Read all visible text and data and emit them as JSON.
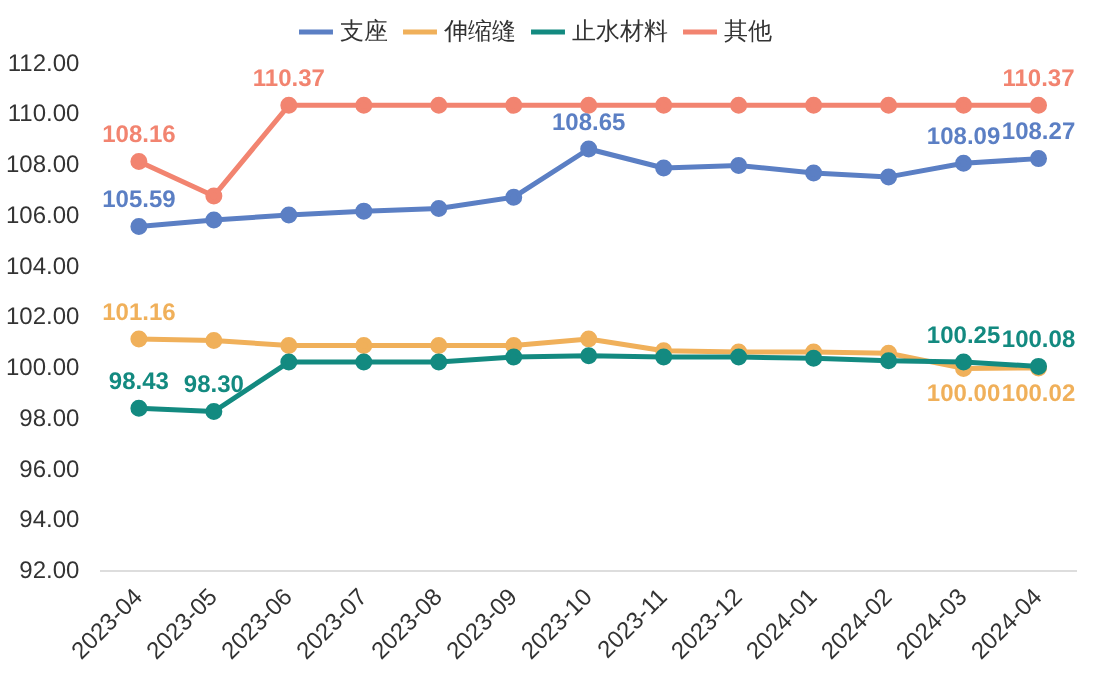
{
  "chart_data": {
    "type": "line",
    "categories": [
      "2023-04",
      "2023-05",
      "2023-06",
      "2023-07",
      "2023-08",
      "2023-09",
      "2023-10",
      "2023-11",
      "2023-12",
      "2024-01",
      "2024-02",
      "2024-03",
      "2024-04"
    ],
    "series": [
      {
        "name": "支座",
        "color": "#5b7fc4",
        "values": [
          105.59,
          105.85,
          106.05,
          106.2,
          106.3,
          106.75,
          108.65,
          107.9,
          108.0,
          107.7,
          107.55,
          108.09,
          108.27
        ],
        "value_labels": [
          "105.59",
          null,
          null,
          null,
          null,
          null,
          "108.65",
          null,
          null,
          null,
          null,
          "108.09",
          "108.27"
        ]
      },
      {
        "name": "伸缩缝",
        "color": "#f0b05a",
        "values": [
          101.16,
          101.1,
          100.9,
          100.9,
          100.9,
          100.9,
          101.16,
          100.7,
          100.65,
          100.65,
          100.6,
          100.0,
          100.02
        ],
        "value_labels": [
          "101.16",
          null,
          null,
          null,
          null,
          null,
          null,
          null,
          null,
          null,
          null,
          "100.00",
          "100.02"
        ]
      },
      {
        "name": "止水材料",
        "color": "#138a80",
        "values": [
          98.43,
          98.3,
          100.25,
          100.25,
          100.25,
          100.45,
          100.5,
          100.45,
          100.45,
          100.4,
          100.3,
          100.25,
          100.08
        ],
        "value_labels": [
          "98.43",
          "98.30",
          null,
          null,
          null,
          null,
          null,
          null,
          null,
          null,
          null,
          "100.25",
          "100.08"
        ]
      },
      {
        "name": "其他",
        "color": "#f28470",
        "values": [
          108.16,
          106.8,
          110.37,
          110.37,
          110.37,
          110.37,
          110.37,
          110.37,
          110.37,
          110.37,
          110.37,
          110.37,
          110.37
        ],
        "value_labels": [
          "108.16",
          null,
          "110.37",
          null,
          null,
          null,
          null,
          null,
          null,
          null,
          null,
          null,
          "110.37"
        ]
      }
    ],
    "ylim": [
      92,
      112
    ],
    "yticks": [
      {
        "value": 92,
        "label": "92.00"
      },
      {
        "value": 94,
        "label": "94.00"
      },
      {
        "value": 96,
        "label": "96.00"
      },
      {
        "value": 98,
        "label": "98.00"
      },
      {
        "value": 100,
        "label": "100.00"
      },
      {
        "value": 102,
        "label": "102.00"
      },
      {
        "value": 104,
        "label": "104.00"
      },
      {
        "value": 106,
        "label": "106.00"
      },
      {
        "value": 108,
        "label": "108.00"
      },
      {
        "value": 110,
        "label": "110.00"
      },
      {
        "value": 112,
        "label": "112.00"
      }
    ],
    "grid": false,
    "legend": "top",
    "marker": "circle",
    "line_style": "solid"
  }
}
